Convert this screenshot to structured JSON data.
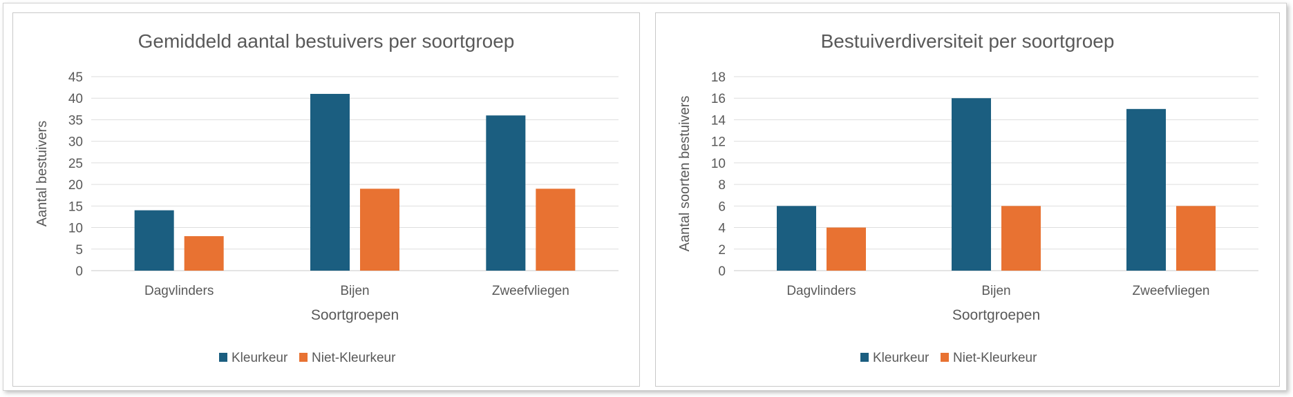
{
  "chart_data": [
    {
      "type": "bar",
      "title": "Gemiddeld aantal bestuivers per soortgroep",
      "xlabel": "Soortgroepen",
      "ylabel": "Aantal bestuivers",
      "categories": [
        "Dagvlinders",
        "Bijen",
        "Zweefvliegen"
      ],
      "ylim": [
        0,
        45
      ],
      "yticks": [
        0,
        5,
        10,
        15,
        20,
        25,
        30,
        35,
        40,
        45
      ],
      "grid": true,
      "legend": "bottom",
      "series": [
        {
          "name": "Kleurkeur",
          "color": "#1b5e80",
          "values": [
            14,
            41,
            36
          ]
        },
        {
          "name": "Niet-Kleurkeur",
          "color": "#e87232",
          "values": [
            8,
            19,
            19
          ]
        }
      ]
    },
    {
      "type": "bar",
      "title": "Bestuiverdiversiteit per soortgroep",
      "xlabel": "Soortgroepen",
      "ylabel": "Aantal soorten bestuivers",
      "categories": [
        "Dagvlinders",
        "Bijen",
        "Zweefvliegen"
      ],
      "ylim": [
        0,
        18
      ],
      "yticks": [
        0,
        2,
        4,
        6,
        8,
        10,
        12,
        14,
        16,
        18
      ],
      "grid": true,
      "legend": "bottom",
      "series": [
        {
          "name": "Kleurkeur",
          "color": "#1b5e80",
          "values": [
            6,
            16,
            15
          ]
        },
        {
          "name": "Niet-Kleurkeur",
          "color": "#e87232",
          "values": [
            4,
            6,
            6
          ]
        }
      ]
    }
  ]
}
